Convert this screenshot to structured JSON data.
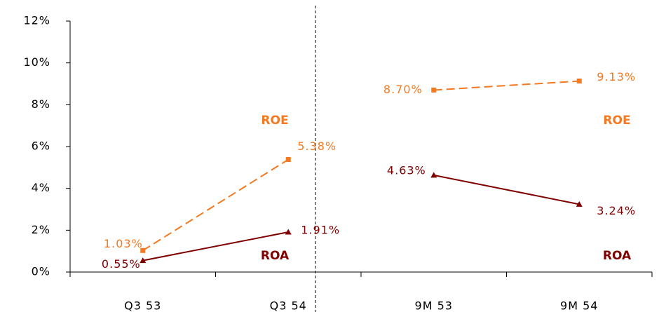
{
  "chart_data": {
    "type": "line",
    "categories": [
      "Q3 53",
      "Q3 54",
      "9M 53",
      "9M 54"
    ],
    "series": [
      {
        "name": "ROE",
        "color": "#f47920",
        "marker": "square",
        "line_style": "dashed",
        "values": [
          1.03,
          5.38,
          8.7,
          9.13
        ],
        "value_labels": [
          "1.03%",
          "5.38%",
          "8.70%",
          "9.13%"
        ]
      },
      {
        "name": "ROA",
        "color": "#7f0000",
        "marker": "triangle",
        "line_style": "solid",
        "values": [
          0.55,
          1.91,
          4.63,
          3.24
        ],
        "value_labels": [
          "0.55%",
          "1.91%",
          "4.63%",
          "3.24%"
        ]
      }
    ],
    "annotations": [
      "ROE",
      "ROE",
      "ROA",
      "ROA"
    ],
    "divider_after": 1,
    "ylim": [
      0,
      12
    ],
    "yticks": [
      {
        "value": 0,
        "label": "0%"
      },
      {
        "value": 2,
        "label": "2%"
      },
      {
        "value": 4,
        "label": "4%"
      },
      {
        "value": 6,
        "label": "6%"
      },
      {
        "value": 8,
        "label": "8%"
      },
      {
        "value": 10,
        "label": "10%"
      },
      {
        "value": 12,
        "label": "12%"
      }
    ]
  }
}
